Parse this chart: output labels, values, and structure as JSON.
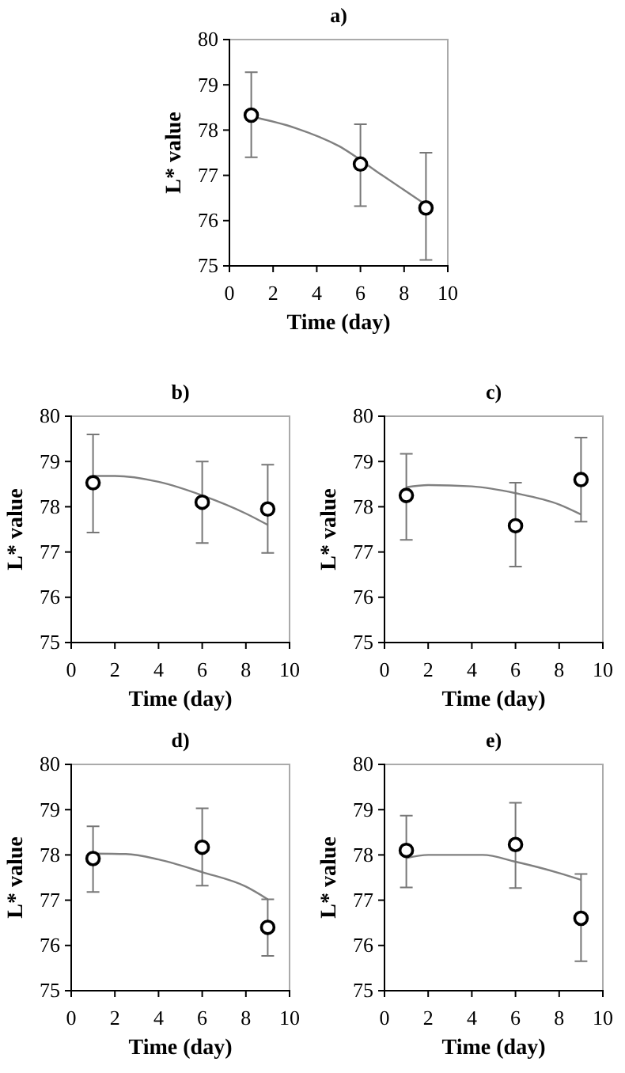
{
  "chart_data": [
    {
      "type": "scatter",
      "title": "a)",
      "xlabel": "Time (day)",
      "ylabel": "L* value",
      "xlim": [
        0,
        10
      ],
      "xticks": [
        0,
        2,
        4,
        6,
        8,
        10
      ],
      "ylim": [
        75,
        80
      ],
      "yticks": [
        75,
        76,
        77,
        78,
        79,
        80
      ],
      "grid": false,
      "series": [
        {
          "marker": "circle",
          "color": "#000000",
          "x": [
            1,
            6,
            9
          ],
          "values": [
            78.33,
            77.25,
            76.28
          ],
          "errors": [
            [
              77.4,
              79.28
            ],
            [
              76.32,
              78.13
            ],
            [
              75.13,
              77.5
            ]
          ]
        },
        {
          "type": "line",
          "marker": "none",
          "color": "#808080",
          "x": [
            1,
            3,
            5,
            7,
            9
          ],
          "values": [
            78.3,
            78.05,
            77.65,
            77.0,
            76.35
          ]
        }
      ]
    },
    {
      "type": "scatter",
      "title": "b)",
      "xlabel": "Time (day)",
      "ylabel": "L* value",
      "xlim": [
        0,
        10
      ],
      "xticks": [
        0,
        2,
        4,
        6,
        8,
        10
      ],
      "ylim": [
        75,
        80
      ],
      "yticks": [
        75,
        76,
        77,
        78,
        79,
        80
      ],
      "grid": false,
      "series": [
        {
          "marker": "circle",
          "color": "#000000",
          "x": [
            1,
            6,
            9
          ],
          "values": [
            78.53,
            78.1,
            77.95
          ],
          "errors": [
            [
              77.43,
              79.6
            ],
            [
              77.2,
              79.0
            ],
            [
              76.98,
              78.93
            ]
          ]
        },
        {
          "type": "line",
          "marker": "none",
          "color": "#808080",
          "x": [
            1,
            2,
            4,
            6,
            8,
            9
          ],
          "values": [
            78.68,
            78.68,
            78.55,
            78.25,
            77.85,
            77.6
          ]
        }
      ]
    },
    {
      "type": "scatter",
      "title": "c)",
      "xlabel": "Time (day)",
      "ylabel": "L* value",
      "xlim": [
        0,
        10
      ],
      "xticks": [
        0,
        2,
        4,
        6,
        8,
        10
      ],
      "ylim": [
        75,
        80
      ],
      "yticks": [
        75,
        76,
        77,
        78,
        79,
        80
      ],
      "grid": false,
      "series": [
        {
          "marker": "circle",
          "color": "#000000",
          "x": [
            1,
            6,
            9
          ],
          "values": [
            78.25,
            77.58,
            78.6
          ],
          "errors": [
            [
              77.27,
              79.17
            ],
            [
              76.68,
              78.53
            ],
            [
              77.67,
              79.53
            ]
          ]
        },
        {
          "type": "line",
          "marker": "none",
          "color": "#808080",
          "x": [
            1,
            2,
            4,
            6,
            8,
            9
          ],
          "values": [
            78.43,
            78.48,
            78.45,
            78.3,
            78.05,
            77.83
          ]
        }
      ]
    },
    {
      "type": "scatter",
      "title": "d)",
      "xlabel": "Time (day)",
      "ylabel": "L* value",
      "xlim": [
        0,
        10
      ],
      "xticks": [
        0,
        2,
        4,
        6,
        8,
        10
      ],
      "ylim": [
        75,
        80
      ],
      "yticks": [
        75,
        76,
        77,
        78,
        79,
        80
      ],
      "grid": false,
      "series": [
        {
          "marker": "circle",
          "color": "#000000",
          "x": [
            1,
            6,
            9
          ],
          "values": [
            77.92,
            78.17,
            76.4
          ],
          "errors": [
            [
              77.18,
              78.63
            ],
            [
              77.32,
              79.03
            ],
            [
              75.77,
              77.02
            ]
          ]
        },
        {
          "type": "line",
          "marker": "none",
          "color": "#808080",
          "x": [
            1,
            2.5,
            4,
            6,
            8,
            9
          ],
          "values": [
            78.03,
            78.02,
            77.9,
            77.62,
            77.3,
            77.02
          ]
        }
      ]
    },
    {
      "type": "scatter",
      "title": "e)",
      "xlabel": "Time (day)",
      "ylabel": "L* value",
      "xlim": [
        0,
        10
      ],
      "xticks": [
        0,
        2,
        4,
        6,
        8,
        10
      ],
      "ylim": [
        75,
        80
      ],
      "yticks": [
        75,
        76,
        77,
        78,
        79,
        80
      ],
      "grid": false,
      "series": [
        {
          "marker": "circle",
          "color": "#000000",
          "x": [
            1,
            6,
            9
          ],
          "values": [
            78.1,
            78.23,
            76.6
          ],
          "errors": [
            [
              77.28,
              78.87
            ],
            [
              77.27,
              79.15
            ],
            [
              75.65,
              77.58
            ]
          ]
        },
        {
          "type": "line",
          "marker": "none",
          "color": "#808080",
          "x": [
            1,
            2,
            4.5,
            6,
            8,
            9
          ],
          "values": [
            77.93,
            78.0,
            78.0,
            77.85,
            77.6,
            77.45
          ]
        }
      ]
    }
  ]
}
